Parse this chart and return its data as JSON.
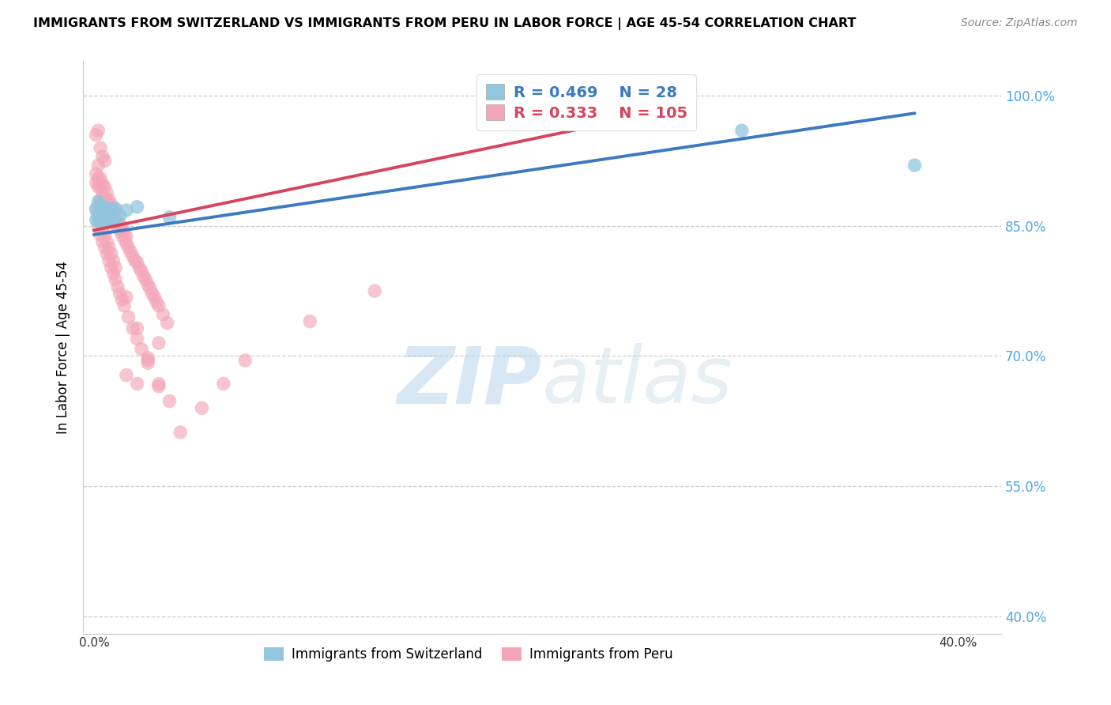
{
  "title": "IMMIGRANTS FROM SWITZERLAND VS IMMIGRANTS FROM PERU IN LABOR FORCE | AGE 45-54 CORRELATION CHART",
  "source": "Source: ZipAtlas.com",
  "ylabel": "In Labor Force | Age 45-54",
  "xlim": [
    -0.005,
    0.42
  ],
  "ylim": [
    0.38,
    1.04
  ],
  "xtick_positions": [
    0.0,
    0.05,
    0.1,
    0.15,
    0.2,
    0.25,
    0.3,
    0.35,
    0.4
  ],
  "xtick_labels": [
    "0.0%",
    "",
    "",
    "",
    "",
    "",
    "",
    "",
    "40.0%"
  ],
  "ytick_positions": [
    0.4,
    0.55,
    0.7,
    0.85,
    1.0
  ],
  "ytick_labels": [
    "40.0%",
    "55.0%",
    "70.0%",
    "85.0%",
    "100.0%"
  ],
  "switzerland_R": 0.469,
  "switzerland_N": 28,
  "peru_R": 0.333,
  "peru_N": 105,
  "switzerland_color": "#92c5de",
  "peru_color": "#f4a6b8",
  "trend_switzerland_color": "#3a7abf",
  "trend_peru_color": "#d6445e",
  "watermark_zip": "ZIP",
  "watermark_atlas": "atlas",
  "sw_trend_x": [
    0.0,
    0.38
  ],
  "sw_trend_y": [
    0.84,
    0.98
  ],
  "pe_trend_x": [
    0.0,
    0.26
  ],
  "pe_trend_y": [
    0.845,
    0.98
  ],
  "switzerland_x": [
    0.001,
    0.001,
    0.002,
    0.002,
    0.002,
    0.003,
    0.003,
    0.003,
    0.004,
    0.004,
    0.005,
    0.005,
    0.006,
    0.006,
    0.006,
    0.007,
    0.007,
    0.008,
    0.008,
    0.009,
    0.01,
    0.01,
    0.012,
    0.015,
    0.02,
    0.035,
    0.3,
    0.38
  ],
  "switzerland_y": [
    0.857,
    0.87,
    0.855,
    0.863,
    0.878,
    0.86,
    0.865,
    0.875,
    0.858,
    0.87,
    0.855,
    0.868,
    0.858,
    0.862,
    0.87,
    0.855,
    0.865,
    0.86,
    0.87,
    0.858,
    0.855,
    0.87,
    0.862,
    0.868,
    0.872,
    0.86,
    0.96,
    0.92
  ],
  "peru_x": [
    0.001,
    0.001,
    0.001,
    0.002,
    0.002,
    0.002,
    0.002,
    0.003,
    0.003,
    0.003,
    0.003,
    0.004,
    0.004,
    0.004,
    0.004,
    0.005,
    0.005,
    0.005,
    0.005,
    0.006,
    0.006,
    0.006,
    0.007,
    0.007,
    0.007,
    0.008,
    0.008,
    0.008,
    0.009,
    0.009,
    0.01,
    0.01,
    0.01,
    0.011,
    0.011,
    0.012,
    0.012,
    0.013,
    0.013,
    0.014,
    0.014,
    0.015,
    0.015,
    0.016,
    0.017,
    0.018,
    0.019,
    0.02,
    0.021,
    0.022,
    0.023,
    0.024,
    0.025,
    0.026,
    0.027,
    0.028,
    0.029,
    0.03,
    0.032,
    0.034,
    0.002,
    0.003,
    0.004,
    0.005,
    0.006,
    0.007,
    0.008,
    0.009,
    0.01,
    0.011,
    0.012,
    0.013,
    0.014,
    0.016,
    0.018,
    0.02,
    0.022,
    0.025,
    0.03,
    0.035,
    0.001,
    0.002,
    0.003,
    0.004,
    0.005,
    0.006,
    0.007,
    0.008,
    0.009,
    0.01,
    0.015,
    0.02,
    0.025,
    0.03,
    0.04,
    0.05,
    0.06,
    0.07,
    0.1,
    0.13,
    0.015,
    0.02,
    0.025,
    0.03,
    0.25
  ],
  "peru_y": [
    0.9,
    0.91,
    0.955,
    0.895,
    0.905,
    0.92,
    0.96,
    0.88,
    0.895,
    0.905,
    0.94,
    0.875,
    0.885,
    0.898,
    0.93,
    0.87,
    0.882,
    0.895,
    0.925,
    0.865,
    0.875,
    0.888,
    0.862,
    0.87,
    0.88,
    0.858,
    0.865,
    0.875,
    0.855,
    0.862,
    0.852,
    0.858,
    0.868,
    0.848,
    0.855,
    0.845,
    0.852,
    0.84,
    0.848,
    0.835,
    0.842,
    0.83,
    0.838,
    0.825,
    0.82,
    0.815,
    0.81,
    0.808,
    0.802,
    0.798,
    0.792,
    0.788,
    0.782,
    0.778,
    0.772,
    0.768,
    0.762,
    0.758,
    0.748,
    0.738,
    0.848,
    0.84,
    0.832,
    0.825,
    0.818,
    0.81,
    0.802,
    0.795,
    0.788,
    0.78,
    0.772,
    0.765,
    0.758,
    0.745,
    0.732,
    0.72,
    0.708,
    0.692,
    0.668,
    0.648,
    0.868,
    0.862,
    0.855,
    0.848,
    0.84,
    0.832,
    0.825,
    0.818,
    0.81,
    0.802,
    0.768,
    0.732,
    0.698,
    0.665,
    0.612,
    0.64,
    0.668,
    0.695,
    0.74,
    0.775,
    0.678,
    0.668,
    0.695,
    0.715,
    0.975
  ]
}
